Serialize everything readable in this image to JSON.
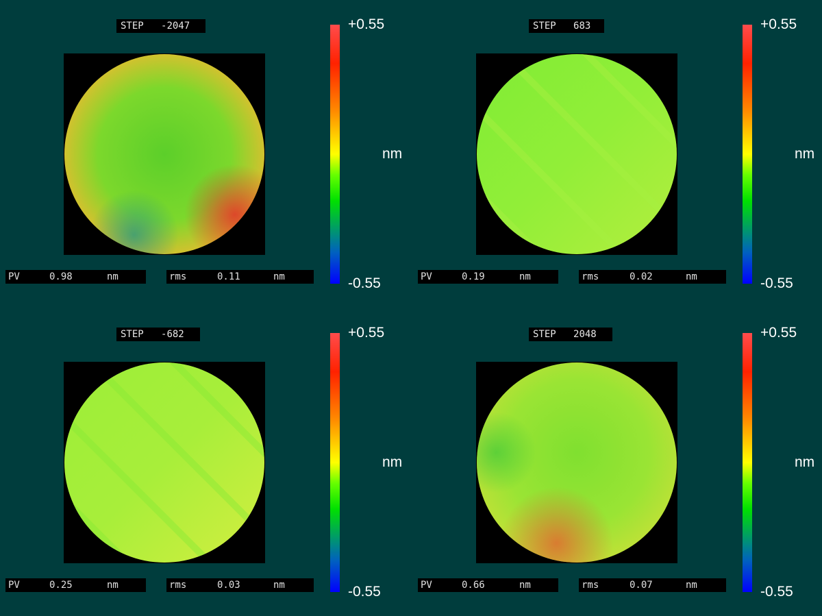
{
  "panels": [
    {
      "step_label": "STEP",
      "step_value": "-2047",
      "pv_label": "PV",
      "pv_value": "0.98",
      "pv_unit": "nm",
      "rms_label": "rms",
      "rms_value": "0.11",
      "rms_unit": "nm",
      "scale_max": "+0.55",
      "scale_min": "-0.55",
      "scale_unit": "nm",
      "dominant_colors": [
        "#5fd62a",
        "#e0c830",
        "#e05030"
      ]
    },
    {
      "step_label": "STEP",
      "step_value": "683",
      "pv_label": "PV",
      "pv_value": "0.19",
      "pv_unit": "nm",
      "rms_label": "rms",
      "rms_value": "0.02",
      "rms_unit": "nm",
      "scale_max": "+0.55",
      "scale_min": "-0.55",
      "scale_unit": "nm",
      "dominant_colors": [
        "#7ef033",
        "#a8f040"
      ]
    },
    {
      "step_label": "STEP",
      "step_value": "-682",
      "pv_label": "PV",
      "pv_value": "0.25",
      "pv_unit": "nm",
      "rms_label": "rms",
      "rms_value": "0.03",
      "rms_unit": "nm",
      "scale_max": "+0.55",
      "scale_min": "-0.55",
      "scale_unit": "nm",
      "dominant_colors": [
        "#a0f035",
        "#c8f040"
      ]
    },
    {
      "step_label": "STEP",
      "step_value": "2048",
      "pv_label": "PV",
      "pv_value": "0.66",
      "pv_unit": "nm",
      "rms_label": "rms",
      "rms_value": "0.07",
      "rms_unit": "nm",
      "scale_max": "+0.55",
      "scale_min": "-0.55",
      "scale_unit": "nm",
      "dominant_colors": [
        "#6ee030",
        "#b8e838",
        "#e06a30"
      ]
    }
  ]
}
